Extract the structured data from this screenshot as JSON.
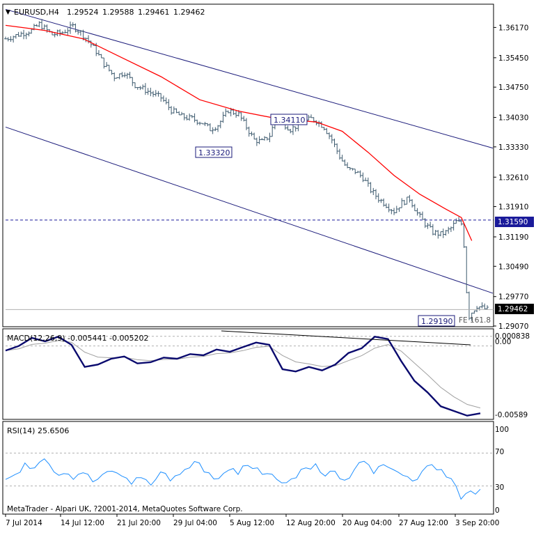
{
  "header": {
    "symbol": "EURUSD,H4",
    "open": "1.29524",
    "high": "1.29588",
    "low": "1.29461",
    "close": "1.29462"
  },
  "colors": {
    "candle": "#3d5a6e",
    "ma": "#ff0000",
    "channel": "#1a1a7a",
    "hline": "#1a1a9a",
    "macd": "#0a0a6e",
    "signal": "#a0a0a0",
    "rsi": "#1e8fff",
    "grid": "#b0b0b0",
    "axis": "#000000"
  },
  "price_axis": [
    "1.36170",
    "1.35450",
    "1.34750",
    "1.34030",
    "1.33330",
    "1.32610",
    "1.31910",
    "1.31190",
    "1.30490",
    "1.29770",
    "1.29070"
  ],
  "current_price_label": "1.29462",
  "hline_label": "1.31590",
  "annotations": {
    "high_label": "1.34110",
    "low_label": "1.33320",
    "bottom_label": "1.29190",
    "fe_label": "FE 161.8"
  },
  "macd_panel": {
    "title": "MACD(12,26,9) -0.005441 -0.005202",
    "axis": [
      "0.000838",
      "0.00",
      "-0.00589"
    ]
  },
  "rsi_panel": {
    "title": "RSI(14) 25.6506",
    "axis": [
      "100",
      "70",
      "30",
      "0"
    ]
  },
  "copyright": "MetaTrader - Alpari UK, ?2001-2014, MetaQuotes Software Corp.",
  "x_axis": [
    "7 Jul 2014",
    "14 Jul 12:00",
    "21 Jul 20:00",
    "29 Jul 04:00",
    "5 Aug 12:00",
    "12 Aug 20:00",
    "20 Aug 04:00",
    "27 Aug 12:00",
    "3 Sep 20:00"
  ],
  "chart_data": {
    "type": "line",
    "title": "EURUSD,H4",
    "price_range": [
      1.2907,
      1.3669
    ],
    "close_path": [
      [
        0,
        1.359
      ],
      [
        5,
        1.36
      ],
      [
        10,
        1.361
      ],
      [
        13,
        1.3625
      ],
      [
        15,
        1.3615
      ],
      [
        18,
        1.36
      ],
      [
        22,
        1.3605
      ],
      [
        26,
        1.362
      ],
      [
        29,
        1.3605
      ],
      [
        32,
        1.3585
      ],
      [
        35,
        1.356
      ],
      [
        38,
        1.353
      ],
      [
        42,
        1.35
      ],
      [
        46,
        1.351
      ],
      [
        50,
        1.348
      ],
      [
        55,
        1.3465
      ],
      [
        60,
        1.345
      ],
      [
        64,
        1.342
      ],
      [
        68,
        1.3405
      ],
      [
        72,
        1.34
      ],
      [
        76,
        1.339
      ],
      [
        79,
        1.3375
      ],
      [
        82,
        1.3385
      ],
      [
        86,
        1.342
      ],
      [
        90,
        1.341
      ],
      [
        93,
        1.338
      ],
      [
        96,
        1.335
      ],
      [
        99,
        1.3345
      ],
      [
        102,
        1.336
      ],
      [
        104,
        1.3395
      ],
      [
        107,
        1.339
      ],
      [
        110,
        1.3375
      ],
      [
        113,
        1.3385
      ],
      [
        116,
        1.3395
      ],
      [
        118,
        1.34
      ],
      [
        120,
        1.3395
      ],
      [
        123,
        1.338
      ],
      [
        126,
        1.335
      ],
      [
        129,
        1.331
      ],
      [
        132,
        1.328
      ],
      [
        135,
        1.3275
      ],
      [
        138,
        1.326
      ],
      [
        141,
        1.323
      ],
      [
        144,
        1.321
      ],
      [
        147,
        1.3195
      ],
      [
        150,
        1.318
      ],
      [
        153,
        1.32
      ],
      [
        156,
        1.321
      ],
      [
        159,
        1.3175
      ],
      [
        162,
        1.315
      ],
      [
        165,
        1.313
      ],
      [
        168,
        1.3125
      ],
      [
        170,
        1.313
      ],
      [
        172,
        1.314
      ],
      [
        174,
        1.3155
      ],
      [
        176,
        1.315
      ],
      [
        177,
        1.31
      ],
      [
        178,
        1.299
      ],
      [
        179,
        1.293
      ],
      [
        180,
        1.294
      ],
      [
        182,
        1.2955
      ],
      [
        184,
        1.295
      ],
      [
        186,
        1.2946
      ]
    ],
    "ma_path": [
      [
        0,
        1.3622
      ],
      [
        15,
        1.361
      ],
      [
        30,
        1.359
      ],
      [
        45,
        1.3545
      ],
      [
        60,
        1.35
      ],
      [
        75,
        1.3445
      ],
      [
        90,
        1.3418
      ],
      [
        105,
        1.34
      ],
      [
        120,
        1.3392
      ],
      [
        130,
        1.337
      ],
      [
        140,
        1.332
      ],
      [
        150,
        1.3265
      ],
      [
        160,
        1.322
      ],
      [
        170,
        1.3185
      ],
      [
        176,
        1.3165
      ],
      [
        180,
        1.311
      ]
    ],
    "levels": {
      "hline": 1.3159,
      "high_mark": 1.3411,
      "low_mark": 1.3332,
      "bottom_mark": 1.2919
    },
    "macd": {
      "range": [
        -0.0062,
        0.0013
      ],
      "values": [
        -0.0004,
        0.0,
        0.0007,
        0.0004,
        0.0008,
        0.0001,
        -0.0018,
        -0.0016,
        -0.0011,
        -0.0009,
        -0.0015,
        -0.0014,
        -0.001,
        -0.0011,
        -0.0007,
        -0.0008,
        -0.0003,
        -0.0005,
        -0.0001,
        0.0003,
        0.0001,
        -0.002,
        -0.0022,
        -0.0018,
        -0.0021,
        -0.0016,
        -0.0006,
        -0.0002,
        0.0008,
        0.0006,
        -0.0013,
        -0.003,
        -0.004,
        -0.0052,
        -0.0056,
        -0.006,
        -0.0058
      ]
    },
    "rsi": {
      "range": [
        0,
        100
      ],
      "values": [
        38,
        44,
        58,
        52,
        63,
        47,
        45,
        38,
        46,
        35,
        44,
        48,
        42,
        32,
        40,
        31,
        47,
        36,
        44,
        52,
        58,
        46,
        39,
        49,
        44,
        55,
        52,
        45,
        38,
        34,
        40,
        52,
        57,
        42,
        48,
        37,
        50,
        60,
        45,
        56,
        50,
        43,
        36,
        48,
        56,
        50,
        39,
        14,
        24,
        26
      ]
    }
  }
}
